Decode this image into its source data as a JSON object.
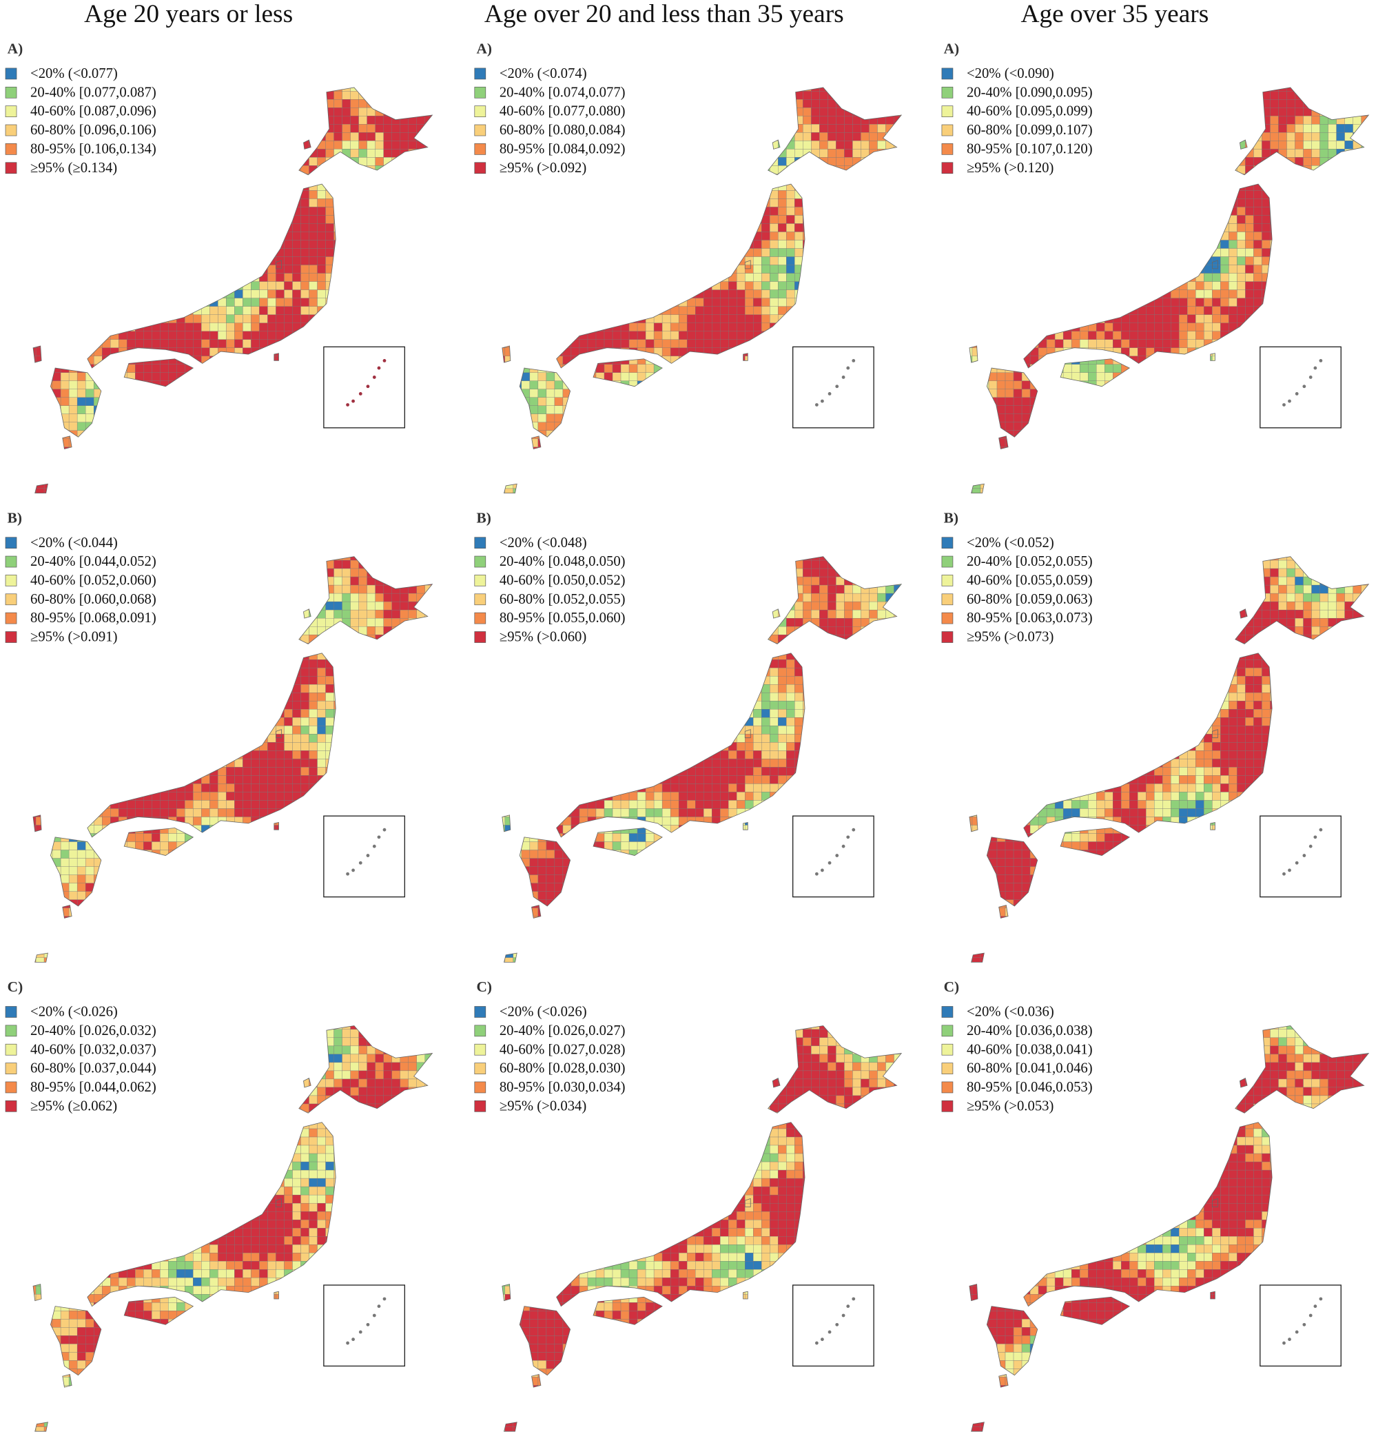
{
  "colors": [
    "#2f7bb8",
    "#8fd07a",
    "#eef39a",
    "#f9cf7a",
    "#f48a4a",
    "#d0303f"
  ],
  "columns": [
    {
      "title": "Age 20 years or less",
      "panels": [
        {
          "label": "A)",
          "legend": [
            "<20% (<0.077)",
            "20-40% [0.077,0.087)",
            "40-60% [0.087,0.096)",
            "60-80% [0.096,0.106)",
            "80-95% [0.106,0.134)",
            "≥95% (≥0.134)"
          ]
        },
        {
          "label": "B)",
          "legend": [
            "<20% (<0.044)",
            "20-40% [0.044,0.052)",
            "40-60% [0.052,0.060)",
            "60-80% [0.060,0.068)",
            "80-95% [0.068,0.091)",
            "≥95% (>0.091)"
          ]
        },
        {
          "label": "C)",
          "legend": [
            "<20% (<0.026)",
            "20-40% [0.026,0.032)",
            "40-60% [0.032,0.037)",
            "60-80% [0.037,0.044)",
            "80-95% [0.044,0.062)",
            "≥95% (≥0.062)"
          ]
        }
      ]
    },
    {
      "title": "Age over 20 and less than 35 years",
      "panels": [
        {
          "label": "A)",
          "legend": [
            "<20% (<0.074)",
            "20-40% [0.074,0.077)",
            "40-60% [0.077,0.080)",
            "60-80% [0.080,0.084)",
            "80-95% [0.084,0.092)",
            "≥95% (>0.092)"
          ]
        },
        {
          "label": "B)",
          "legend": [
            "<20% (<0.048)",
            "20-40% [0.048,0.050)",
            "40-60% [0.050,0.052)",
            "60-80% [0.052,0.055)",
            "80-95% [0.055,0.060)",
            "≥95% (>0.060)"
          ]
        },
        {
          "label": "C)",
          "legend": [
            "<20% (<0.026)",
            "20-40% [0.026,0.027)",
            "40-60% [0.027,0.028)",
            "60-80% [0.028,0.030)",
            "80-95% [0.030,0.034)",
            "≥95% (>0.034)"
          ]
        }
      ]
    },
    {
      "title": "Age over 35 years",
      "panels": [
        {
          "label": "A)",
          "legend": [
            "<20% (<0.090)",
            "20-40% [0.090,0.095)",
            "40-60% [0.095,0.099)",
            "60-80% [0.099,0.107)",
            "80-95% [0.107,0.120)",
            "≥95% (>0.120)"
          ]
        },
        {
          "label": "B)",
          "legend": [
            "<20% (<0.052)",
            "20-40% [0.052,0.055)",
            "40-60% [0.055,0.059)",
            "60-80% [0.059,0.063)",
            "80-95% [0.063,0.073)",
            "≥95% (>0.073)"
          ]
        },
        {
          "label": "C)",
          "legend": [
            "<20% (<0.036)",
            "20-40% [0.036,0.038)",
            "40-60% [0.038,0.041)",
            "60-80% [0.041,0.046)",
            "80-95% [0.046,0.053)",
            "≥95% (>0.053)"
          ]
        }
      ]
    }
  ]
}
